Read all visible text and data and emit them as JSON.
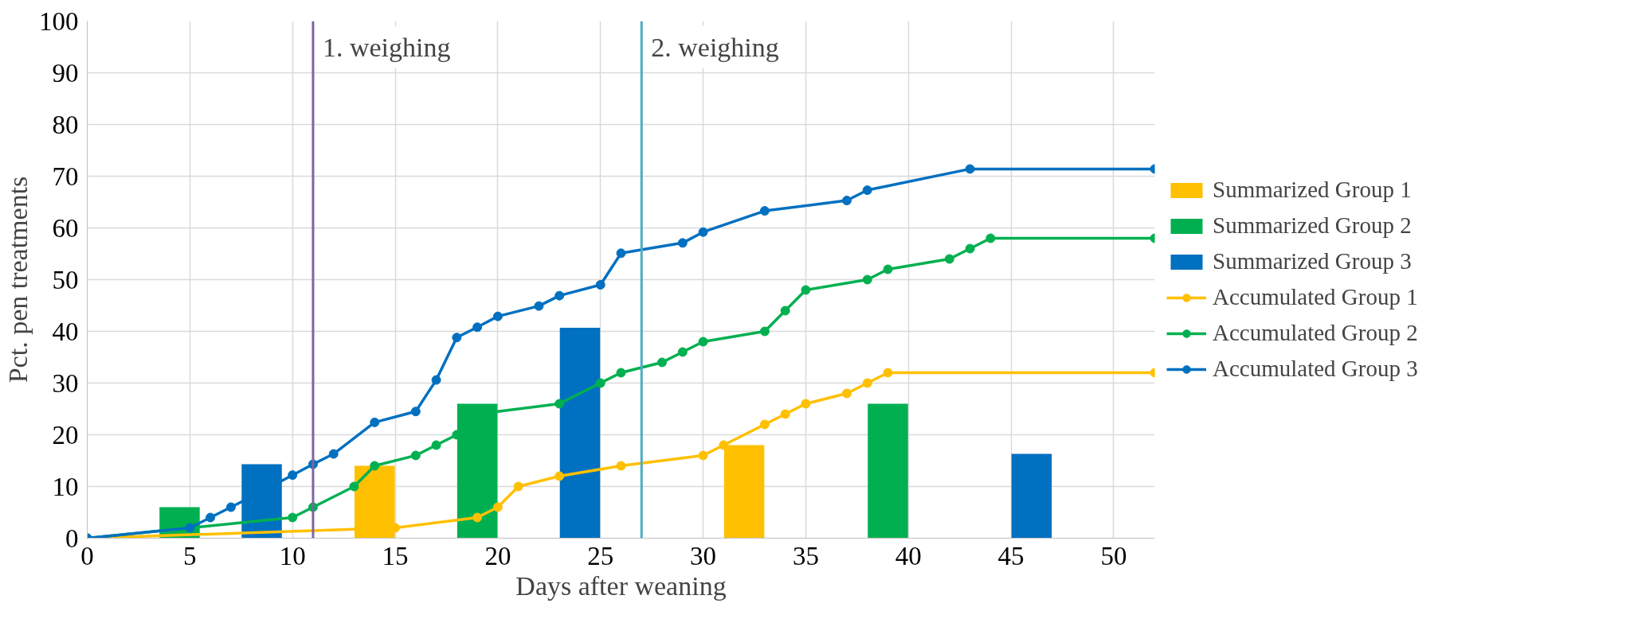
{
  "chart_data": {
    "type": "bar",
    "xlabel": "Days after weaning",
    "ylabel": "Pct. pen treatments",
    "xlim": [
      0,
      52
    ],
    "xticks": [
      0,
      5,
      10,
      15,
      20,
      25,
      30,
      35,
      40,
      45,
      50
    ],
    "ylim": [
      0,
      100
    ],
    "yticks": [
      0,
      10,
      20,
      30,
      40,
      50,
      60,
      70,
      80,
      90,
      100
    ],
    "grid": true,
    "legend": "right",
    "marker": "circle",
    "line_style": "solid",
    "series": [
      {
        "name": "Summarized Group 1",
        "color": "#ffc000",
        "x": [
          14,
          32
        ],
        "values": [
          14,
          18
        ]
      },
      {
        "name": "Summarized Group 2",
        "color": "#00b050",
        "x": [
          4.5,
          19,
          39
        ],
        "values": [
          6,
          26,
          26
        ]
      },
      {
        "name": "Summarized Group 3",
        "color": "#0070c0",
        "x": [
          8.5,
          24,
          46
        ],
        "values": [
          14.3,
          40.7,
          16.3
        ]
      },
      {
        "name": "Accumulated Group 1",
        "type": "line",
        "color": "#ffc000",
        "x": [
          0,
          15,
          19,
          20,
          21,
          23,
          26,
          30,
          31,
          33,
          34,
          35,
          37,
          38,
          39,
          52
        ],
        "values": [
          0,
          2,
          4,
          6,
          10,
          12,
          14,
          16,
          18,
          22,
          24,
          26,
          28,
          30,
          32,
          32
        ]
      },
      {
        "name": "Accumulated Group 2",
        "type": "line",
        "color": "#00b050",
        "x": [
          0,
          5,
          10,
          11,
          13,
          14,
          16,
          17,
          18,
          19,
          23,
          25,
          26,
          28,
          29,
          30,
          33,
          34,
          35,
          38,
          39,
          42,
          43,
          44,
          52
        ],
        "values": [
          0,
          2,
          4,
          6,
          10,
          14,
          16,
          18,
          20,
          24,
          26,
          30,
          32,
          34,
          36,
          38,
          40,
          44,
          48,
          50,
          52,
          54,
          56,
          58,
          58
        ]
      },
      {
        "name": "Accumulated Group 3",
        "type": "line",
        "color": "#0070c0",
        "x": [
          0,
          5,
          6,
          7,
          8,
          10,
          11,
          12,
          14,
          16,
          17,
          18,
          19,
          20,
          22,
          23,
          25,
          26,
          29,
          30,
          33,
          37,
          38,
          43,
          52
        ],
        "values": [
          0,
          2,
          4,
          6,
          8,
          12.2,
          14.3,
          16.3,
          22.4,
          24.5,
          30.6,
          38.8,
          40.8,
          42.9,
          44.9,
          46.9,
          49,
          55.1,
          57.1,
          59.2,
          63.3,
          65.3,
          67.3,
          71.4,
          71.4
        ]
      }
    ],
    "ref_lines": [
      {
        "axis": "x",
        "value": 11,
        "label": "1. weighing",
        "color": "#8064a2"
      },
      {
        "axis": "x",
        "value": 27,
        "label": "2. weighing",
        "color": "#4bacc6"
      }
    ]
  }
}
